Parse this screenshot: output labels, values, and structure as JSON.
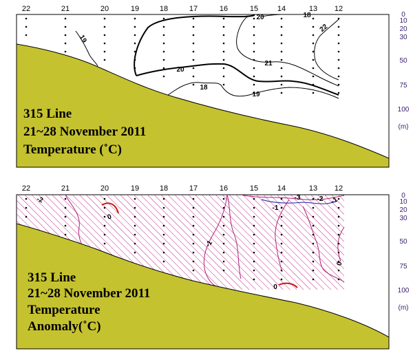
{
  "stations": [
    "22",
    "21",
    "20",
    "19",
    "18",
    "17",
    "16",
    "15",
    "14",
    "13",
    "12"
  ],
  "depth_labels": [
    "0",
    "10",
    "20",
    "30",
    "50",
    "75",
    "100",
    "(m)"
  ],
  "colors": {
    "seabed": "#c5c230",
    "temperature_contours": "#000000",
    "anomaly_contours": "#b0207a",
    "anomaly_hatch": "#c02a84",
    "zero_contour": "#d01010"
  },
  "panels": [
    {
      "title_line1": "315 Line",
      "title_line2": "21~28 November 2011",
      "title_line3": "Temperature (",
      "title_line3_unit": "˚C)",
      "contour_labels": [
        "20",
        "18",
        "19",
        "21",
        "22",
        "20",
        "18",
        "19"
      ]
    },
    {
      "title_line1": "315 Line",
      "title_line2": "21~28 November 2011",
      "title_line3": "Temperature",
      "title_line4": "Anomaly(",
      "title_line4_unit": "˚C)",
      "contour_labels": [
        "-2",
        "0",
        "-1",
        "-1",
        "-3",
        "-2",
        "-1",
        "0",
        "0"
      ]
    }
  ]
}
